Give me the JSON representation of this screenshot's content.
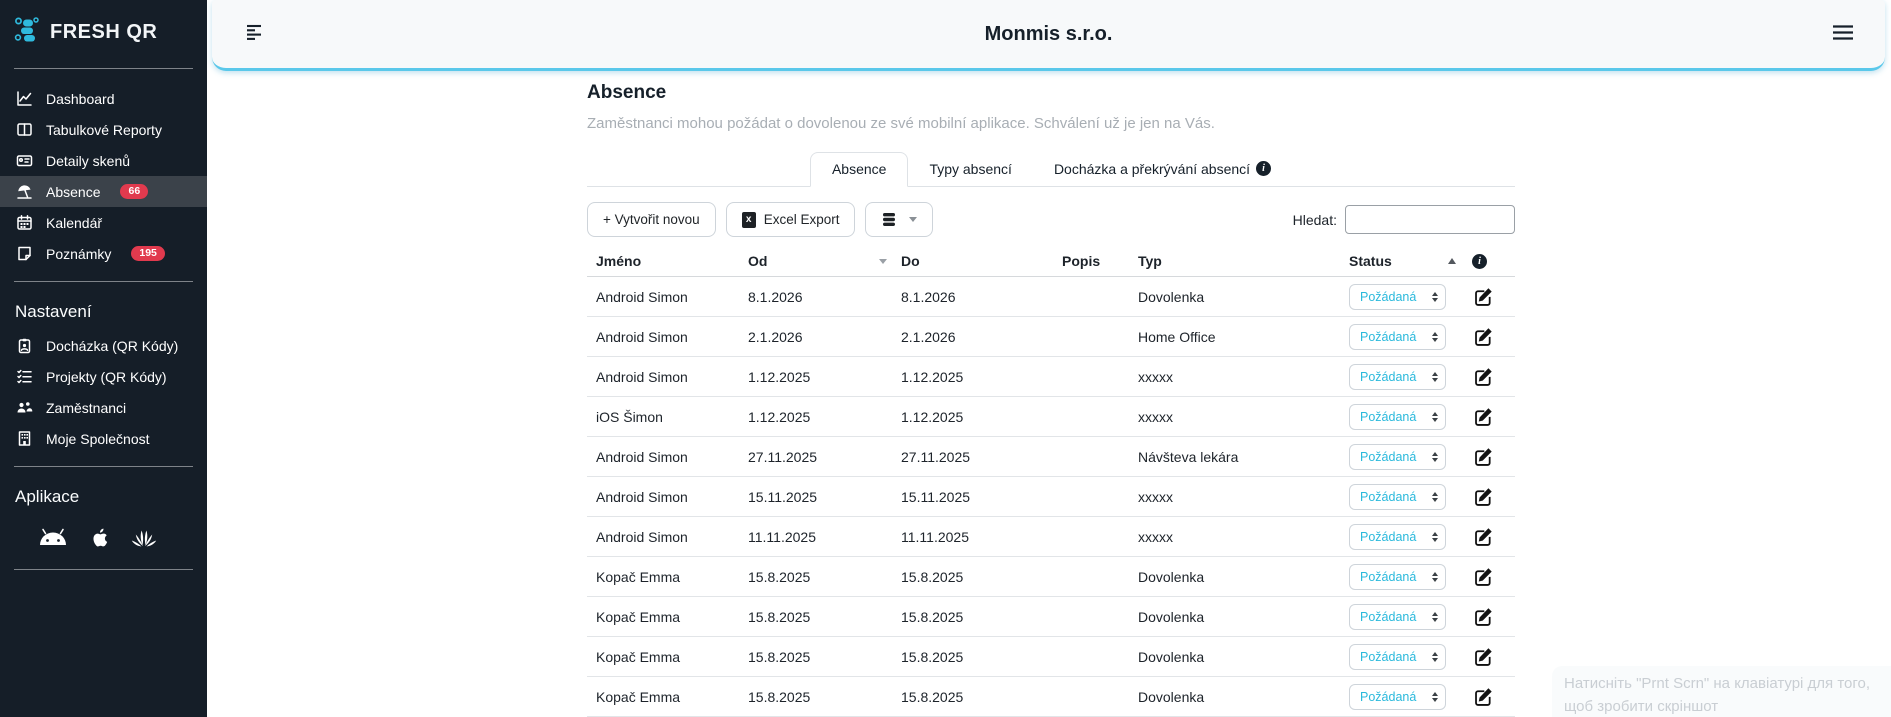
{
  "colors": {
    "accent_cyan": "#2fbadd",
    "badge_red": "#e13a4e",
    "header_border_cyan": "#5ac8ea",
    "sidebar_bg": "#151e28",
    "active_item_bg": "#3b424a",
    "status_text": "#29b9dc"
  },
  "sidebar": {
    "logo_text": "FRESH QR",
    "items": [
      {
        "key": "dashboard",
        "label": "Dashboard",
        "icon": "chart-line-icon"
      },
      {
        "key": "tabulkove-reporty",
        "label": "Tabulkové Reporty",
        "icon": "table-columns-icon"
      },
      {
        "key": "detaily-skenu",
        "label": "Detaily skenů",
        "icon": "id-card-icon"
      },
      {
        "key": "absence",
        "label": "Absence",
        "icon": "beach-umbrella-icon",
        "badge": "66",
        "active": true
      },
      {
        "key": "kalendar",
        "label": "Kalendář",
        "icon": "calendar-icon"
      },
      {
        "key": "poznamky",
        "label": "Poznámky",
        "icon": "note-icon",
        "badge": "195"
      }
    ],
    "settings": {
      "title": "Nastavení",
      "items": [
        {
          "key": "dochazka-qr-kody",
          "label": "Docházka (QR Kódy)",
          "icon": "clipboard-icon"
        },
        {
          "key": "projekty-qr-kody",
          "label": "Projekty (QR Kódy)",
          "icon": "list-check-icon"
        },
        {
          "key": "zamestnanci",
          "label": "Zaměstnanci",
          "icon": "people-icon"
        },
        {
          "key": "moje-spolecnost",
          "label": "Moje Společnost",
          "icon": "building-icon"
        }
      ]
    },
    "apps": {
      "title": "Aplikace",
      "items": [
        "android-app-icon",
        "apple-app-icon",
        "huawei-app-icon"
      ]
    }
  },
  "header": {
    "title": "Monmis s.r.o."
  },
  "page": {
    "title": "Absence",
    "subtitle": "Zaměstnanci mohou požádat o dovolenou ze své mobilní aplikace. Schválení už je jen na Vás.",
    "tabs": [
      {
        "key": "absence",
        "label": "Absence",
        "active": true
      },
      {
        "key": "typy-absenci",
        "label": "Typy absencí"
      },
      {
        "key": "dochazka-a-prekryvani-absenci",
        "label": "Docházka a překrývání absencí",
        "info": true
      }
    ],
    "toolbar": {
      "create_label": "+ Vytvořit novou",
      "excel_label": "Excel Export",
      "search_label": "Hledat:",
      "search_value": ""
    },
    "table": {
      "columns": [
        "Jméno",
        "Od",
        "Do",
        "Popis",
        "Typ",
        "Status"
      ],
      "rows": [
        {
          "name": "Android Simon",
          "od": "8.1.2026",
          "do": "8.1.2026",
          "popis": "",
          "typ": "Dovolenka",
          "status": "Požádaná"
        },
        {
          "name": "Android Simon",
          "od": "2.1.2026",
          "do": "2.1.2026",
          "popis": "",
          "typ": "Home Office",
          "status": "Požádaná"
        },
        {
          "name": "Android Simon",
          "od": "1.12.2025",
          "do": "1.12.2025",
          "popis": "",
          "typ": "xxxxx",
          "status": "Požádaná"
        },
        {
          "name": "iOS Šimon",
          "od": "1.12.2025",
          "do": "1.12.2025",
          "popis": "",
          "typ": "xxxxx",
          "status": "Požádaná"
        },
        {
          "name": "Android Simon",
          "od": "27.11.2025",
          "do": "27.11.2025",
          "popis": "",
          "typ": "Návšteva lekára",
          "status": "Požádaná"
        },
        {
          "name": "Android Simon",
          "od": "15.11.2025",
          "do": "15.11.2025",
          "popis": "",
          "typ": "xxxxx",
          "status": "Požádaná"
        },
        {
          "name": "Android Simon",
          "od": "11.11.2025",
          "do": "11.11.2025",
          "popis": "",
          "typ": "xxxxx",
          "status": "Požádaná"
        },
        {
          "name": "Kopač Emma",
          "od": "15.8.2025",
          "do": "15.8.2025",
          "popis": "",
          "typ": "Dovolenka",
          "status": "Požádaná"
        },
        {
          "name": "Kopač Emma",
          "od": "15.8.2025",
          "do": "15.8.2025",
          "popis": "",
          "typ": "Dovolenka",
          "status": "Požádaná"
        },
        {
          "name": "Kopač Emma",
          "od": "15.8.2025",
          "do": "15.8.2025",
          "popis": "",
          "typ": "Dovolenka",
          "status": "Požádaná"
        },
        {
          "name": "Kopač Emma",
          "od": "15.8.2025",
          "do": "15.8.2025",
          "popis": "",
          "typ": "Dovolenka",
          "status": "Požádaná"
        }
      ]
    }
  },
  "screenshot_tip": {
    "text": "Натисніть \"Prnt Scrn\" на клавіатурі для того, щоб зробити скріншот"
  }
}
